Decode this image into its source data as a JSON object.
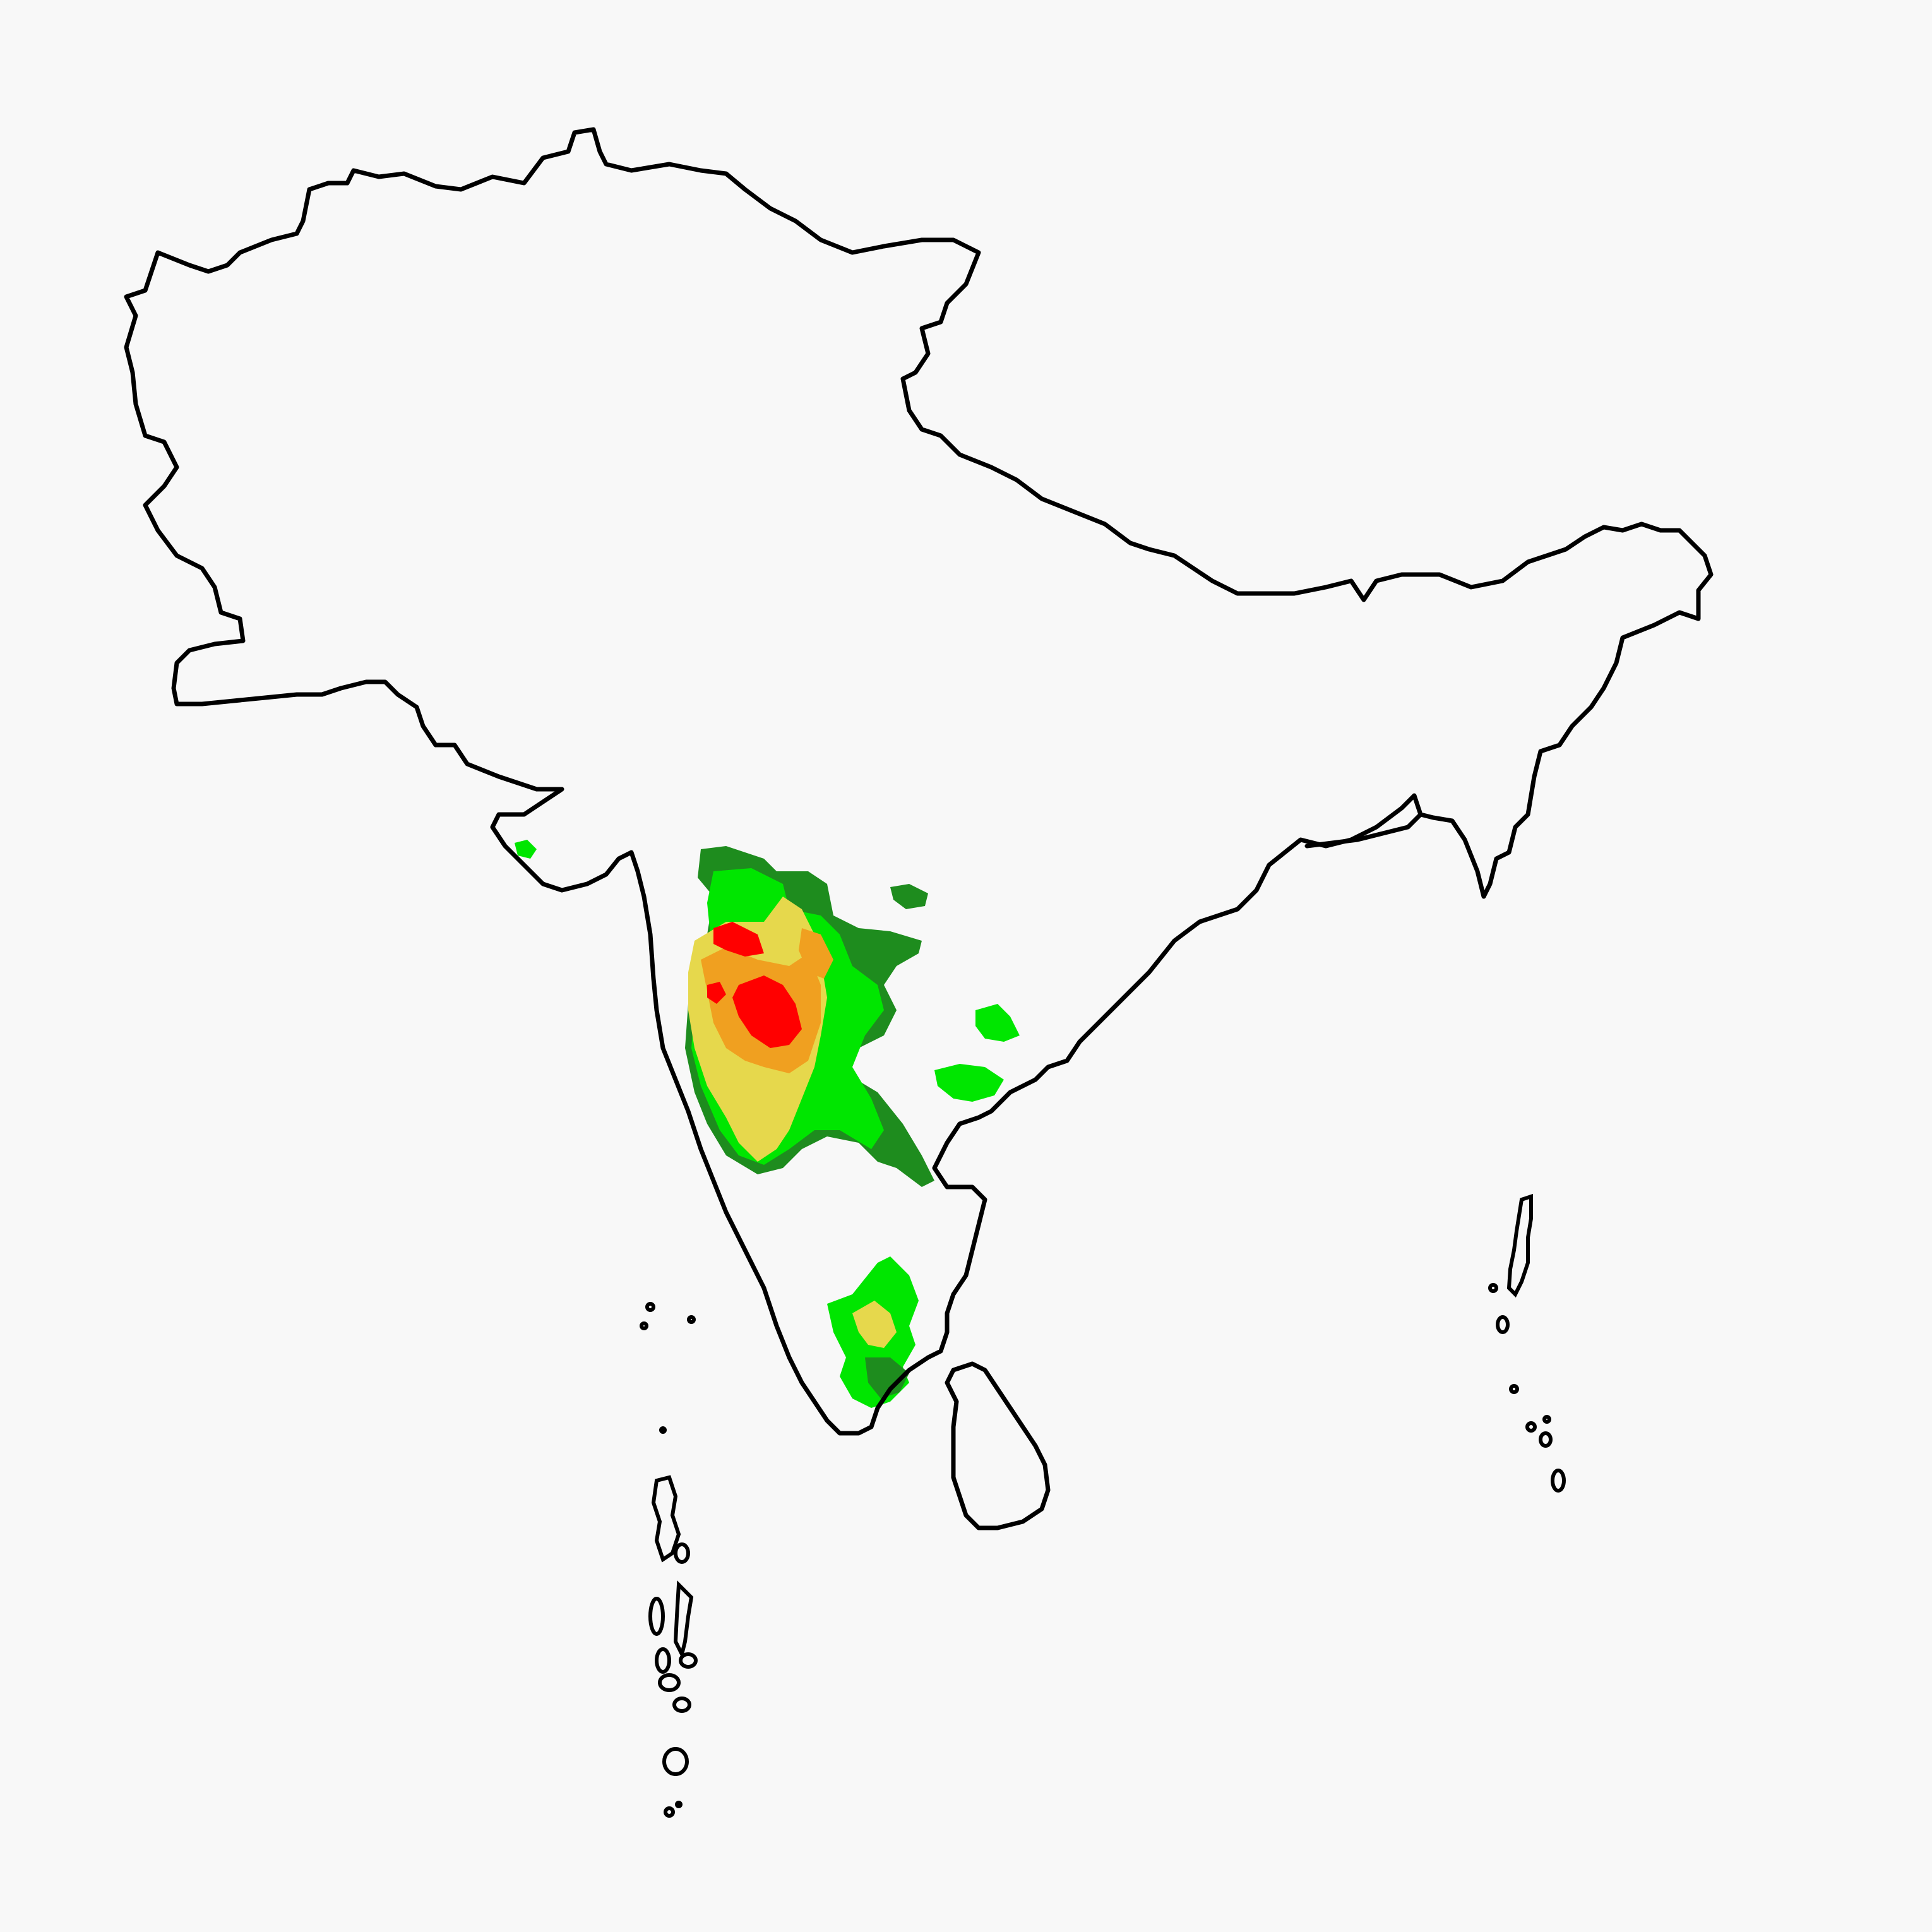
{
  "map": {
    "background": "#f8f8f8",
    "outline_color": "#000000",
    "region": "South Asia",
    "categories": [
      {
        "id": "dark-green",
        "color": "#1e8c1e"
      },
      {
        "id": "light-green",
        "color": "#00e600"
      },
      {
        "id": "yellow",
        "color": "#e6d84c"
      },
      {
        "id": "orange",
        "color": "#f0a020"
      },
      {
        "id": "red",
        "color": "#ff0000"
      }
    ]
  }
}
